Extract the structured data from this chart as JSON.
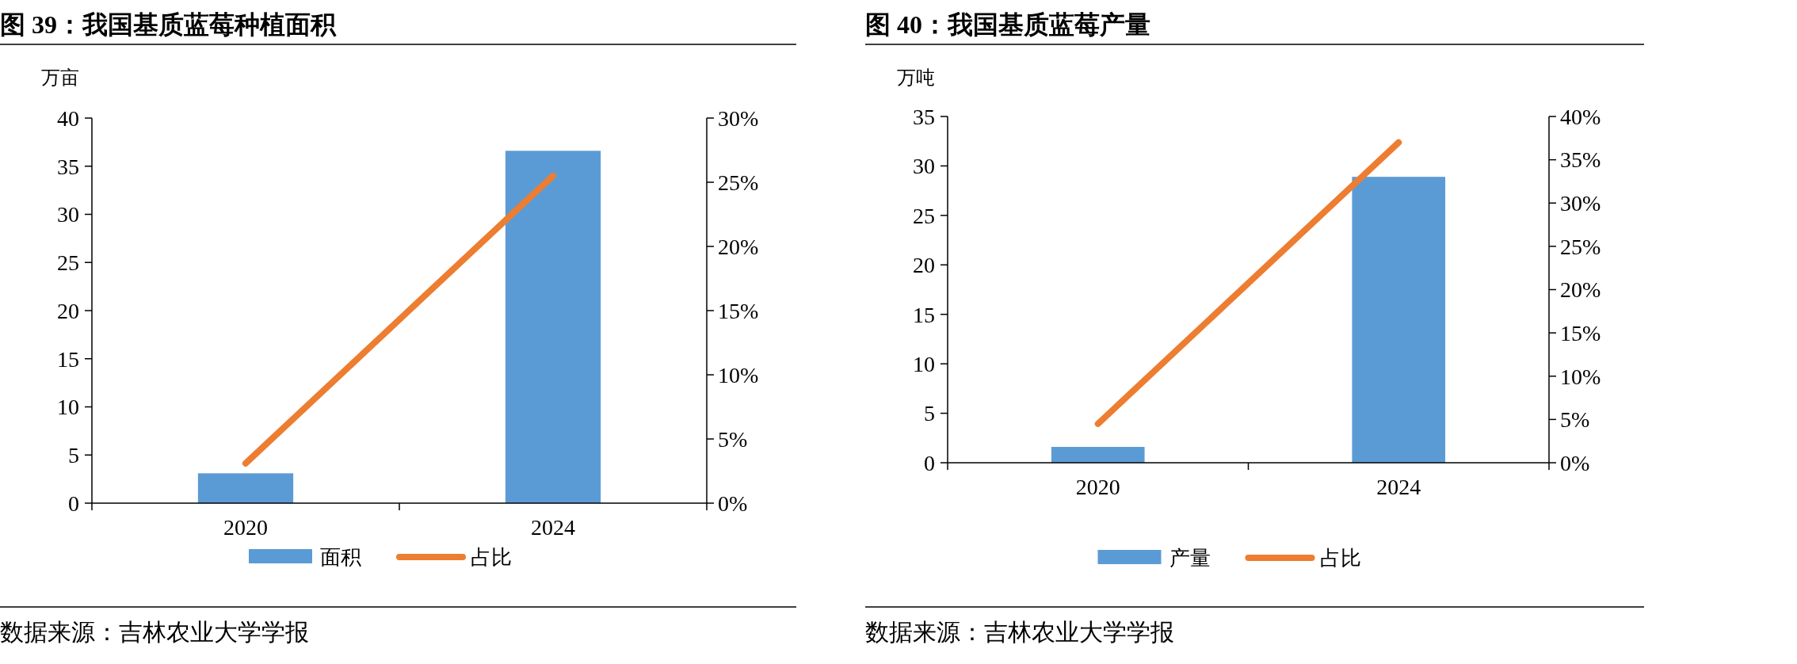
{
  "chart_data": [
    {
      "type": "bar",
      "title": "图 39：我国基质蓝莓种植面积",
      "ylabel": "万亩",
      "categories": [
        "2020",
        "2024"
      ],
      "series": [
        {
          "name": "面积",
          "color": "#5b9bd5",
          "values": [
            3.1,
            36.6
          ]
        },
        {
          "name": "占比",
          "type": "line",
          "axis": "y2",
          "color": "#ed7d31",
          "values": [
            3.1,
            25.5
          ]
        }
      ],
      "ylim": [
        0,
        40
      ],
      "yticks": [
        0,
        5,
        10,
        15,
        20,
        25,
        30,
        35,
        40
      ],
      "y2lim": [
        0,
        30
      ],
      "y2ticks": [
        {
          "value": 0,
          "label": "0%"
        },
        {
          "value": 5,
          "label": "5%"
        },
        {
          "value": 10,
          "label": "10%"
        },
        {
          "value": 15,
          "label": "15%"
        },
        {
          "value": 20,
          "label": "20%"
        },
        {
          "value": 25,
          "label": "25%"
        },
        {
          "value": 30,
          "label": "30%"
        }
      ],
      "legend": "bottom",
      "grid": false,
      "annotations": [
        "数据来源：吉林农业大学学报"
      ]
    },
    {
      "type": "bar",
      "title": "图 40：我国基质蓝莓产量",
      "ylabel": "万吨",
      "categories": [
        "2020",
        "2024"
      ],
      "series": [
        {
          "name": "产量",
          "color": "#5b9bd5",
          "values": [
            1.6,
            28.9
          ]
        },
        {
          "name": "占比",
          "type": "line",
          "axis": "y2",
          "color": "#ed7d31",
          "values": [
            4.5,
            37.0
          ]
        }
      ],
      "ylim": [
        0,
        35
      ],
      "yticks": [
        0,
        5,
        10,
        15,
        20,
        25,
        30,
        35
      ],
      "y2lim": [
        0,
        40
      ],
      "y2ticks": [
        {
          "value": 0,
          "label": "0%"
        },
        {
          "value": 5,
          "label": "5%"
        },
        {
          "value": 10,
          "label": "10%"
        },
        {
          "value": 15,
          "label": "15%"
        },
        {
          "value": 20,
          "label": "20%"
        },
        {
          "value": 25,
          "label": "25%"
        },
        {
          "value": 30,
          "label": "30%"
        },
        {
          "value": 35,
          "label": "35%"
        },
        {
          "value": 40,
          "label": "40%"
        }
      ],
      "legend": "bottom",
      "grid": false,
      "annotations": [
        "数据来源：吉林农业大学学报"
      ]
    }
  ]
}
